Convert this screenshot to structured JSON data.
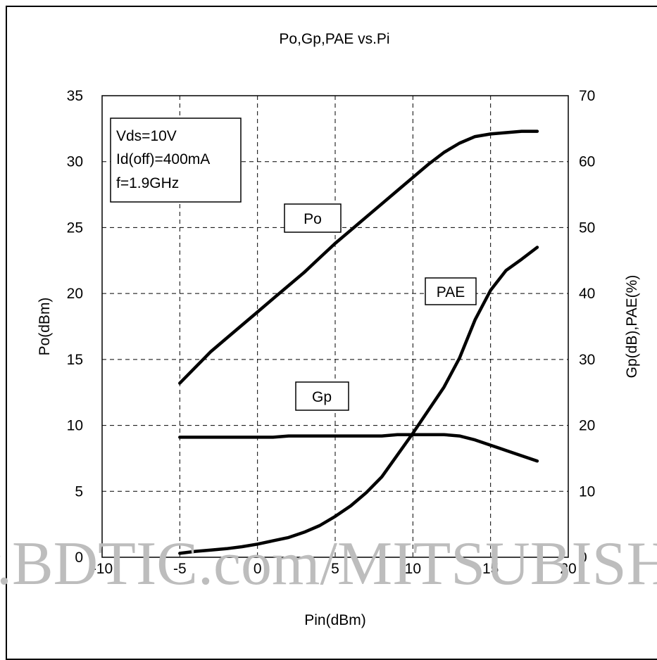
{
  "chart_data": {
    "type": "line",
    "title": "Po,Gp,PAE vs.Pi",
    "xlabel": "Pin(dBm)",
    "ylabel_left": "Po(dBm)",
    "ylabel_right": "Gp(dB),PAE(%)",
    "xlim": [
      -10,
      20
    ],
    "ylim_left": [
      0,
      35
    ],
    "ylim_right": [
      0,
      70
    ],
    "x_ticks": [
      "-10",
      "-5",
      "0",
      "5",
      "10",
      "15",
      "20"
    ],
    "y_left_ticks": [
      "0",
      "5",
      "10",
      "15",
      "20",
      "25",
      "30",
      "35"
    ],
    "y_right_ticks": [
      "0",
      "10",
      "20",
      "30",
      "40",
      "50",
      "60",
      "70"
    ],
    "grid": true,
    "annotation_box": [
      "Vds=10V",
      "Id(off)=400mA",
      "f=1.9GHz"
    ],
    "series": [
      {
        "name": "Po",
        "axis": "left",
        "x": [
          -5,
          -4,
          -3,
          -2,
          -1,
          0,
          1,
          2,
          3,
          4,
          5,
          6,
          7,
          8,
          9,
          10,
          11,
          12,
          13,
          14,
          15,
          16,
          17,
          18
        ],
        "y": [
          13.2,
          14.4,
          15.6,
          16.6,
          17.6,
          18.6,
          19.6,
          20.6,
          21.6,
          22.7,
          23.8,
          24.8,
          25.8,
          26.8,
          27.8,
          28.8,
          29.8,
          30.7,
          31.4,
          31.9,
          32.1,
          32.2,
          32.3,
          32.3
        ]
      },
      {
        "name": "Gp",
        "axis": "right",
        "x": [
          -5,
          -4,
          -3,
          -2,
          -1,
          0,
          1,
          2,
          3,
          4,
          5,
          6,
          7,
          8,
          9,
          10,
          11,
          12,
          13,
          14,
          15,
          16,
          17,
          18
        ],
        "y": [
          18.2,
          18.2,
          18.2,
          18.2,
          18.2,
          18.2,
          18.2,
          18.4,
          18.4,
          18.4,
          18.4,
          18.4,
          18.4,
          18.4,
          18.6,
          18.6,
          18.6,
          18.6,
          18.4,
          17.8,
          17.0,
          16.2,
          15.4,
          14.6
        ]
      },
      {
        "name": "PAE",
        "axis": "right",
        "x": [
          -5,
          -4,
          -3,
          -2,
          -1,
          0,
          1,
          2,
          3,
          4,
          5,
          6,
          7,
          8,
          9,
          10,
          11,
          12,
          13,
          14,
          15,
          16,
          17,
          18
        ],
        "y": [
          0.6,
          0.9,
          1.1,
          1.3,
          1.6,
          2.0,
          2.5,
          3.0,
          3.8,
          4.8,
          6.2,
          7.8,
          9.8,
          12.2,
          15.5,
          18.8,
          22.3,
          25.8,
          30.2,
          36.0,
          40.5,
          43.5,
          45.2,
          47.0
        ]
      }
    ],
    "series_labels": [
      "Po",
      "PAE",
      "Gp"
    ]
  },
  "watermark": "www.BDTIC.com/MITSUBISHI"
}
